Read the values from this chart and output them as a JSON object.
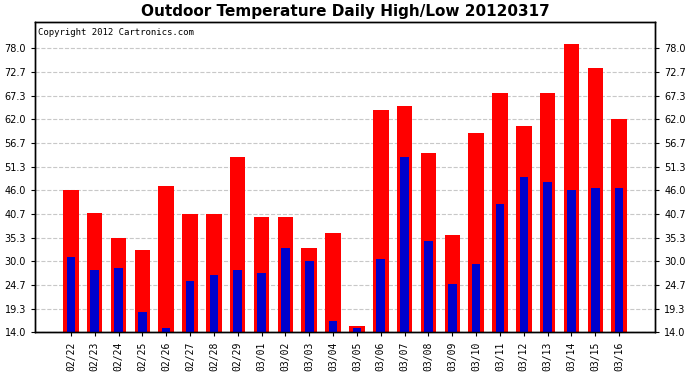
{
  "title": "Outdoor Temperature Daily High/Low 20120317",
  "copyright": "Copyright 2012 Cartronics.com",
  "dates": [
    "02/22",
    "02/23",
    "02/24",
    "02/25",
    "02/26",
    "02/27",
    "02/28",
    "02/29",
    "03/01",
    "03/02",
    "03/03",
    "03/04",
    "03/05",
    "03/06",
    "03/07",
    "03/08",
    "03/09",
    "03/10",
    "03/11",
    "03/12",
    "03/13",
    "03/14",
    "03/15",
    "03/16"
  ],
  "highs": [
    46.0,
    41.0,
    35.3,
    32.5,
    47.0,
    40.7,
    40.7,
    53.6,
    40.0,
    40.0,
    33.0,
    36.5,
    15.5,
    64.0,
    65.0,
    54.5,
    36.0,
    59.0,
    68.0,
    60.5,
    68.0,
    79.0,
    73.5,
    62.0
  ],
  "lows": [
    31.0,
    28.0,
    28.5,
    18.5,
    15.0,
    25.5,
    27.0,
    28.0,
    27.5,
    33.0,
    30.0,
    16.5,
    15.0,
    30.5,
    53.5,
    34.5,
    25.0,
    29.5,
    43.0,
    49.0,
    48.0,
    46.0,
    46.5,
    46.5
  ],
  "high_color": "#ff0000",
  "low_color": "#0000cc",
  "bg_color": "#ffffff",
  "grid_color": "#c8c8c8",
  "ylim": [
    14.0,
    84.0
  ],
  "yticks": [
    14.0,
    19.3,
    24.7,
    30.0,
    35.3,
    40.7,
    46.0,
    51.3,
    56.7,
    62.0,
    67.3,
    72.7,
    78.0
  ],
  "title_fontsize": 11,
  "tick_fontsize": 7,
  "copyright_fontsize": 6.5,
  "bar_width": 0.65
}
